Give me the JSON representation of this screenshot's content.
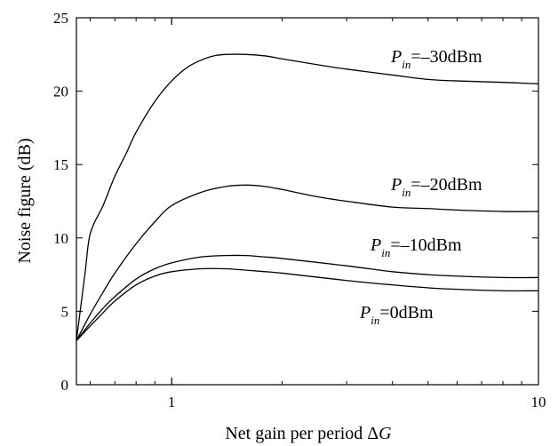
{
  "chart_data": {
    "type": "line",
    "xscale": "log",
    "xlim": [
      0.55,
      10
    ],
    "ylim": [
      0,
      25
    ],
    "xticks": [
      {
        "value": 1,
        "label": "1"
      },
      {
        "value": 10,
        "label": "10"
      }
    ],
    "yticks": [
      {
        "value": 0,
        "label": "0"
      },
      {
        "value": 5,
        "label": "5"
      },
      {
        "value": 10,
        "label": "10"
      },
      {
        "value": 15,
        "label": "15"
      },
      {
        "value": 20,
        "label": "20"
      },
      {
        "value": 25,
        "label": "25"
      }
    ],
    "xlabel": "Net gain per period  ΔG",
    "xlabel_parts": {
      "text": "Net gain per period  Δ",
      "var": "G"
    },
    "ylabel": "Noise figure (dB)",
    "grid": false,
    "series": [
      {
        "name": "P_in=−30dBm",
        "label_parts": {
          "main": "P",
          "sub": "in",
          "rest": "=–30dBm"
        },
        "x": [
          0.55,
          0.58,
          0.6,
          0.65,
          0.7,
          0.75,
          0.8,
          0.9,
          1.0,
          1.1,
          1.2,
          1.3,
          1.4,
          1.6,
          1.8,
          2.0,
          2.5,
          3.0,
          4.0,
          5.0,
          6.0,
          8.0,
          10.0
        ],
        "y": [
          3.0,
          7.5,
          10.3,
          12.2,
          14.2,
          15.7,
          17.2,
          19.3,
          20.7,
          21.6,
          22.1,
          22.4,
          22.5,
          22.5,
          22.4,
          22.2,
          21.8,
          21.5,
          21.1,
          20.8,
          20.7,
          20.6,
          20.5
        ]
      },
      {
        "name": "P_in=−20dBm",
        "label_parts": {
          "main": "P",
          "sub": "in",
          "rest": "=–20dBm"
        },
        "x": [
          0.55,
          0.6,
          0.65,
          0.7,
          0.8,
          0.9,
          1.0,
          1.2,
          1.4,
          1.6,
          1.8,
          2.0,
          2.5,
          3.0,
          4.0,
          5.0,
          6.0,
          8.0,
          10.0
        ],
        "y": [
          3.0,
          4.8,
          6.3,
          7.6,
          9.6,
          11.1,
          12.2,
          13.1,
          13.5,
          13.6,
          13.5,
          13.3,
          12.8,
          12.5,
          12.1,
          12.0,
          11.9,
          11.8,
          11.8
        ]
      },
      {
        "name": "P_in=−10dBm",
        "label_parts": {
          "main": "P",
          "sub": "in",
          "rest": "=–10dBm"
        },
        "x": [
          0.55,
          0.6,
          0.65,
          0.7,
          0.8,
          0.9,
          1.0,
          1.2,
          1.4,
          1.6,
          1.8,
          2.0,
          3.0,
          4.0,
          5.0,
          6.0,
          8.0,
          10.0
        ],
        "y": [
          3.0,
          4.2,
          5.2,
          6.0,
          7.2,
          7.9,
          8.3,
          8.7,
          8.8,
          8.8,
          8.7,
          8.6,
          8.1,
          7.7,
          7.5,
          7.4,
          7.3,
          7.3
        ]
      },
      {
        "name": "P_in=0dBm",
        "label_parts": {
          "main": "P",
          "sub": "in",
          "rest": "=0dBm"
        },
        "x": [
          0.55,
          0.6,
          0.65,
          0.7,
          0.8,
          0.9,
          1.0,
          1.2,
          1.4,
          1.6,
          1.8,
          2.0,
          3.0,
          4.0,
          5.0,
          6.0,
          8.0,
          10.0
        ],
        "y": [
          3.0,
          4.0,
          4.9,
          5.7,
          6.8,
          7.4,
          7.7,
          7.9,
          7.9,
          7.8,
          7.7,
          7.6,
          7.1,
          6.8,
          6.6,
          6.5,
          6.4,
          6.4
        ]
      }
    ]
  }
}
